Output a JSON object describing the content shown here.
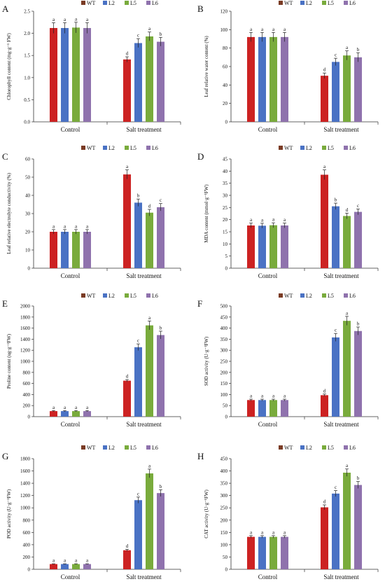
{
  "legend": [
    "WT",
    "L2",
    "L5",
    "L6"
  ],
  "colors": {
    "WT": "#cc2222",
    "L2": "#4a72c4",
    "L5": "#79ab3c",
    "L6": "#8f72ad",
    "legend_WT": "#7a3b24"
  },
  "chart_data": [
    {
      "type": "bar",
      "panel": "A",
      "ylabel": "Chlorophyll content (mg·g⁻¹ FW)",
      "categories": [
        "Control",
        "Salt treatment"
      ],
      "ylim": [
        0,
        2.5
      ],
      "yticks": [
        "0.0",
        "0.5",
        "1.0",
        "1.5",
        "2.0",
        "2.5"
      ],
      "series": [
        {
          "name": "WT",
          "values": [
            2.12,
            1.41
          ],
          "errors": [
            0.12,
            0.06
          ],
          "letters": [
            "a",
            "d"
          ]
        },
        {
          "name": "L2",
          "values": [
            2.12,
            1.78
          ],
          "errors": [
            0.12,
            0.1
          ],
          "letters": [
            "a",
            "c"
          ]
        },
        {
          "name": "L5",
          "values": [
            2.13,
            1.93
          ],
          "errors": [
            0.12,
            0.1
          ],
          "letters": [
            "a",
            "a"
          ]
        },
        {
          "name": "L6",
          "values": [
            2.12,
            1.81
          ],
          "errors": [
            0.12,
            0.1
          ],
          "letters": [
            "a",
            "b"
          ]
        }
      ]
    },
    {
      "type": "bar",
      "panel": "B",
      "ylabel": "Leaf relative water content (%)",
      "categories": [
        "Control",
        "Salt treatment"
      ],
      "ylim": [
        0,
        120
      ],
      "yticks": [
        "0",
        "20",
        "40",
        "60",
        "80",
        "100",
        "120"
      ],
      "series": [
        {
          "name": "WT",
          "values": [
            92,
            50
          ],
          "errors": [
            5,
            3
          ],
          "letters": [
            "a",
            "d"
          ]
        },
        {
          "name": "L2",
          "values": [
            92,
            65
          ],
          "errors": [
            5,
            4
          ],
          "letters": [
            "a",
            "c"
          ]
        },
        {
          "name": "L5",
          "values": [
            92,
            72
          ],
          "errors": [
            5,
            5
          ],
          "letters": [
            "a",
            "a"
          ]
        },
        {
          "name": "L6",
          "values": [
            92,
            70
          ],
          "errors": [
            5,
            5
          ],
          "letters": [
            "a",
            "b"
          ]
        }
      ]
    },
    {
      "type": "bar",
      "panel": "C",
      "ylabel": "Leaf relative electrolyte conductivity (%)",
      "categories": [
        "Control",
        "Salt treatment"
      ],
      "ylim": [
        0,
        60
      ],
      "yticks": [
        "0",
        "10",
        "20",
        "30",
        "40",
        "50",
        "60"
      ],
      "series": [
        {
          "name": "WT",
          "values": [
            20,
            51.5
          ],
          "errors": [
            1.2,
            2.5
          ],
          "letters": [
            "a",
            "a"
          ]
        },
        {
          "name": "L2",
          "values": [
            20,
            36
          ],
          "errors": [
            1.2,
            2
          ],
          "letters": [
            "a",
            "b"
          ]
        },
        {
          "name": "L5",
          "values": [
            20,
            30.5
          ],
          "errors": [
            1.2,
            1.8
          ],
          "letters": [
            "a",
            "d"
          ]
        },
        {
          "name": "L6",
          "values": [
            20,
            33.5
          ],
          "errors": [
            1.2,
            2
          ],
          "letters": [
            "a",
            "c"
          ]
        }
      ]
    },
    {
      "type": "bar",
      "panel": "D",
      "ylabel": "MDA content (mmol·g⁻¹FW)",
      "categories": [
        "Control",
        "Salt treatment"
      ],
      "ylim": [
        0,
        45
      ],
      "yticks": [
        "0",
        "5",
        "10",
        "15",
        "20",
        "25",
        "30",
        "35",
        "40",
        "45"
      ],
      "series": [
        {
          "name": "WT",
          "values": [
            17.6,
            38.5
          ],
          "errors": [
            1,
            2
          ],
          "letters": [
            "a",
            "a"
          ]
        },
        {
          "name": "L2",
          "values": [
            17.5,
            25.5
          ],
          "errors": [
            1,
            1.3
          ],
          "letters": [
            "a",
            "b"
          ]
        },
        {
          "name": "L5",
          "values": [
            17.7,
            21.5
          ],
          "errors": [
            1,
            1.2
          ],
          "letters": [
            "a",
            "d"
          ]
        },
        {
          "name": "L6",
          "values": [
            17.6,
            23.2
          ],
          "errors": [
            1,
            1.2
          ],
          "letters": [
            "a",
            "c"
          ]
        }
      ]
    },
    {
      "type": "bar",
      "panel": "E",
      "ylabel": "Proline content (ug·g⁻¹FW)",
      "categories": [
        "Control",
        "Salt treatment"
      ],
      "ylim": [
        0,
        2000
      ],
      "yticks": [
        "0",
        "200",
        "400",
        "600",
        "800",
        "1000",
        "1200",
        "1400",
        "1600",
        "1800",
        "2000"
      ],
      "series": [
        {
          "name": "WT",
          "values": [
            100,
            650
          ],
          "errors": [
            10,
            20
          ],
          "letters": [
            "a",
            "d"
          ]
        },
        {
          "name": "L2",
          "values": [
            100,
            1255
          ],
          "errors": [
            10,
            60
          ],
          "letters": [
            "a",
            "c"
          ]
        },
        {
          "name": "L5",
          "values": [
            100,
            1650
          ],
          "errors": [
            10,
            80
          ],
          "letters": [
            "a",
            "a"
          ]
        },
        {
          "name": "L6",
          "values": [
            100,
            1475
          ],
          "errors": [
            10,
            70
          ],
          "letters": [
            "a",
            "b"
          ]
        }
      ]
    },
    {
      "type": "bar",
      "panel": "F",
      "ylabel": "SOD activity (U·g⁻¹FW)",
      "categories": [
        "Control",
        "Salt treatment"
      ],
      "ylim": [
        0,
        500
      ],
      "yticks": [
        "0",
        "50",
        "100",
        "150",
        "200",
        "250",
        "300",
        "350",
        "400",
        "450",
        "500"
      ],
      "series": [
        {
          "name": "WT",
          "values": [
            75,
            97
          ],
          "errors": [
            4,
            5
          ],
          "letters": [
            "a",
            "d"
          ]
        },
        {
          "name": "L2",
          "values": [
            75,
            358
          ],
          "errors": [
            4,
            18
          ],
          "letters": [
            "a",
            "c"
          ]
        },
        {
          "name": "L5",
          "values": [
            75,
            433
          ],
          "errors": [
            4,
            20
          ],
          "letters": [
            "a",
            "a"
          ]
        },
        {
          "name": "L6",
          "values": [
            75,
            387
          ],
          "errors": [
            4,
            18
          ],
          "letters": [
            "a",
            "b"
          ]
        }
      ]
    },
    {
      "type": "bar",
      "panel": "G",
      "ylabel": "POD activity (U·g⁻¹FW)",
      "categories": [
        "Control",
        "Salt treatment"
      ],
      "ylim": [
        0,
        1800
      ],
      "yticks": [
        "0",
        "200",
        "400",
        "600",
        "800",
        "1000",
        "1200",
        "1400",
        "1600",
        "1800"
      ],
      "series": [
        {
          "name": "WT",
          "values": [
            85,
            310
          ],
          "errors": [
            5,
            15
          ],
          "letters": [
            "a",
            "d"
          ]
        },
        {
          "name": "L2",
          "values": [
            85,
            1125
          ],
          "errors": [
            5,
            50
          ],
          "letters": [
            "a",
            "c"
          ]
        },
        {
          "name": "L5",
          "values": [
            85,
            1560
          ],
          "errors": [
            5,
            70
          ],
          "letters": [
            "a",
            "a"
          ]
        },
        {
          "name": "L6",
          "values": [
            85,
            1240
          ],
          "errors": [
            5,
            55
          ],
          "letters": [
            "a",
            "b"
          ]
        }
      ]
    },
    {
      "type": "bar",
      "panel": "H",
      "ylabel": "CAT activity (U·g⁻¹FW)",
      "categories": [
        "Control",
        "Salt treatment"
      ],
      "ylim": [
        0,
        450
      ],
      "yticks": [
        "0",
        "50",
        "100",
        "150",
        "200",
        "250",
        "300",
        "350",
        "400",
        "450"
      ],
      "series": [
        {
          "name": "WT",
          "values": [
            132,
            252
          ],
          "errors": [
            5,
            10
          ],
          "letters": [
            "a",
            "d"
          ]
        },
        {
          "name": "L2",
          "values": [
            132,
            308
          ],
          "errors": [
            5,
            12
          ],
          "letters": [
            "a",
            "c"
          ]
        },
        {
          "name": "L5",
          "values": [
            132,
            393
          ],
          "errors": [
            5,
            15
          ],
          "letters": [
            "a",
            "a"
          ]
        },
        {
          "name": "L6",
          "values": [
            132,
            343
          ],
          "errors": [
            5,
            14
          ],
          "letters": [
            "a",
            "b"
          ]
        }
      ]
    }
  ]
}
